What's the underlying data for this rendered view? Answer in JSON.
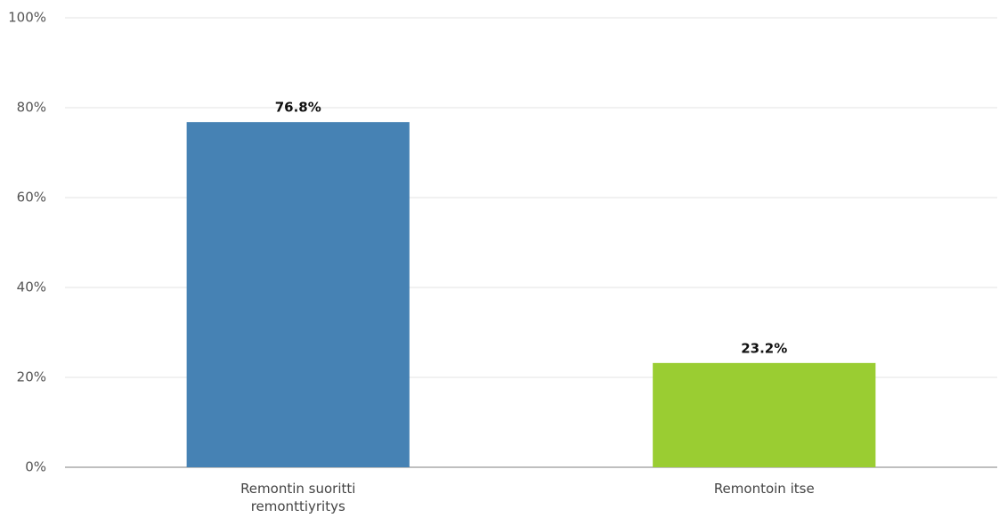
{
  "chart_data": {
    "type": "bar",
    "categories": [
      "Remontin suoritti remonttiyritys",
      "Remontoin itse"
    ],
    "values": [
      76.8,
      23.2
    ],
    "value_labels": [
      "76.8%",
      "23.2%"
    ],
    "colors": [
      "#4682b4",
      "#9acd32"
    ],
    "ylim": [
      0,
      100
    ],
    "yticks": [
      {
        "value": 0,
        "label": "0%"
      },
      {
        "value": 20,
        "label": "20%"
      },
      {
        "value": 40,
        "label": "40%"
      },
      {
        "value": 60,
        "label": "60%"
      },
      {
        "value": 80,
        "label": "80%"
      },
      {
        "value": 100,
        "label": "100%"
      }
    ],
    "grid": true
  }
}
